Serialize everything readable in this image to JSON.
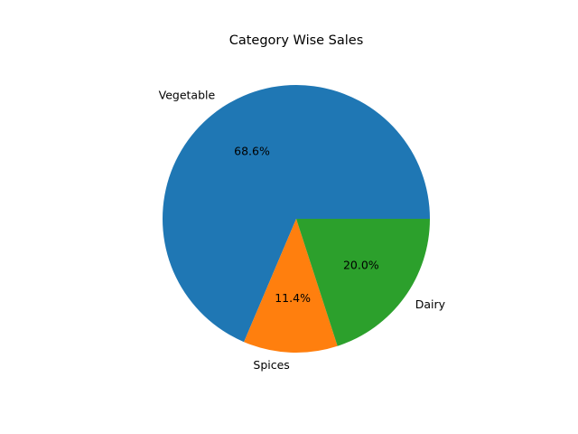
{
  "chart_data": {
    "type": "pie",
    "title": "Category Wise Sales",
    "categories": [
      "Vegetable",
      "Spices",
      "Dairy"
    ],
    "values": [
      68.6,
      11.4,
      20.0
    ],
    "percent_labels": [
      "68.6%",
      "11.4%",
      "20.0%"
    ],
    "colors": [
      "#1f77b4",
      "#ff7f0e",
      "#2ca02c"
    ],
    "start_angle_deg": 0,
    "direction": "counterclockwise",
    "legend": "none"
  }
}
